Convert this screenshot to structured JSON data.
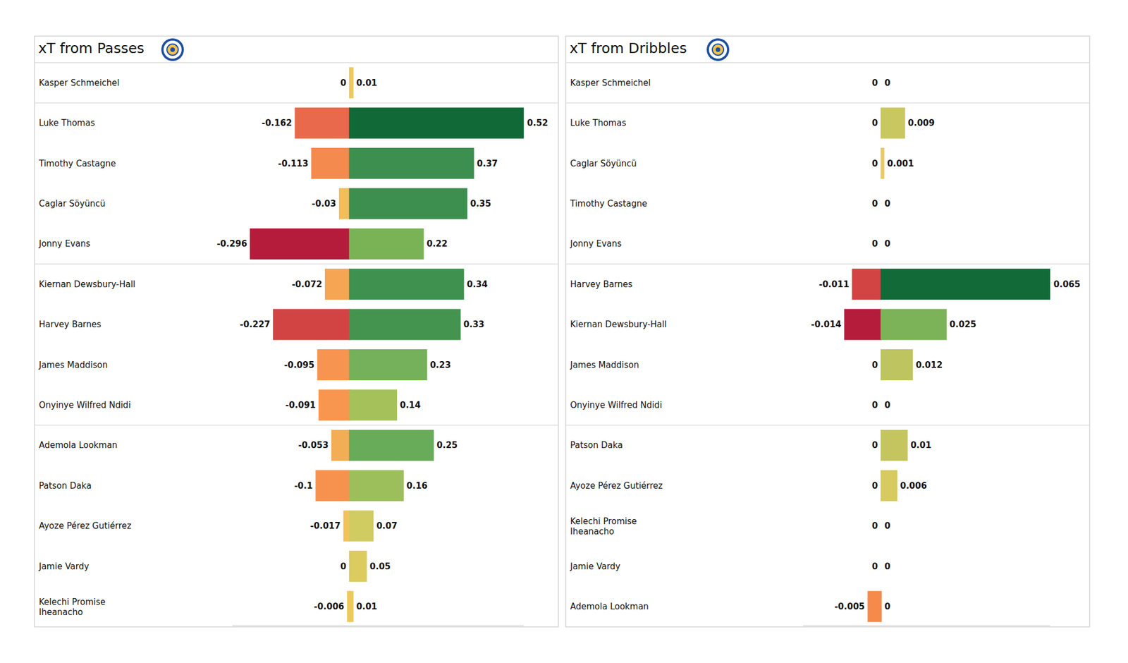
{
  "chart_data": [
    {
      "type": "bar",
      "orientation": "horizontal",
      "title": "xT from Passes",
      "categories": [
        "Kasper Schmeichel",
        "Luke Thomas",
        "Timothy Castagne",
        "Caglar Söyüncü",
        "Jonny Evans",
        "Kiernan Dewsbury-Hall",
        "Harvey Barnes",
        "James Maddison",
        "Onyinye Wilfred Ndidi",
        "Ademola Lookman",
        "Patson Daka",
        "Ayoze Pérez Gutiérrez",
        "Jamie Vardy",
        "Kelechi Promise Iheanacho"
      ],
      "series": [
        {
          "values": [
            0,
            -0.162,
            -0.113,
            -0.03,
            -0.296,
            -0.072,
            -0.227,
            -0.095,
            -0.091,
            -0.053,
            -0.1,
            -0.017,
            0,
            -0.006
          ],
          "colors": [
            "#f0cb5c",
            "#e8694b",
            "#f48a4d",
            "#f3bc5d",
            "#b51c3c",
            "#f6a553",
            "#d24444",
            "#f79550",
            "#f8954f",
            "#f3ad55",
            "#f7924e",
            "#f2c35c",
            "#f0cb5c",
            "#f1c860"
          ]
        },
        {
          "values": [
            0.01,
            0.52,
            0.37,
            0.35,
            0.22,
            0.34,
            0.33,
            0.23,
            0.14,
            0.25,
            0.16,
            0.07,
            0.05,
            0.01
          ],
          "colors": [
            "#ecc95c",
            "#116937",
            "#3d8f50",
            "#3d8f50",
            "#7ab356",
            "#3f9150",
            "#44944f",
            "#74b15a",
            "#a5c15a",
            "#68ab58",
            "#9cbf5b",
            "#d0cc62",
            "#dccb5f",
            "#ecc95c"
          ]
        }
      ],
      "xlim": [
        -0.35,
        0.52
      ],
      "tick_labels": false,
      "data_labels": true,
      "grid": false
    },
    {
      "type": "bar",
      "orientation": "horizontal",
      "title": "xT from Dribbles",
      "categories": [
        "Kasper Schmeichel",
        "Luke Thomas",
        "Caglar Söyüncü",
        "Timothy Castagne",
        "Jonny Evans",
        "Harvey Barnes",
        "Kiernan Dewsbury-Hall",
        "James Maddison",
        "Onyinye Wilfred Ndidi",
        "Patson Daka",
        "Ayoze Pérez Gutiérrez",
        "Kelechi Promise Iheanacho",
        "Jamie Vardy",
        "Ademola Lookman"
      ],
      "series": [
        {
          "values": [
            0,
            0,
            0,
            0,
            0,
            -0.011,
            -0.014,
            0,
            0,
            0,
            0,
            0,
            0,
            -0.005
          ],
          "colors": [
            "#efd067",
            "#efd067",
            "#efd067",
            "#efd067",
            "#efd067",
            "#d24444",
            "#b51c3c",
            "#efd067",
            "#efd067",
            "#efd067",
            "#efd067",
            "#efd067",
            "#efd067",
            "#f58a4b"
          ]
        },
        {
          "values": [
            0,
            0.009,
            0.001,
            0,
            0,
            0.065,
            0.025,
            0.012,
            0,
            0.01,
            0.006,
            0,
            0,
            0
          ],
          "colors": [
            "#efd067",
            "#c9c75f",
            "#e9cc5e",
            "#efd067",
            "#efd067",
            "#126a38",
            "#7cb358",
            "#bdc460",
            "#efd067",
            "#c5c55f",
            "#d7ca5f",
            "#efd067",
            "#efd067",
            "#efd067"
          ]
        }
      ],
      "xlim": [
        -0.03,
        0.065
      ],
      "tick_labels": false,
      "data_labels": true,
      "grid": false
    }
  ]
}
